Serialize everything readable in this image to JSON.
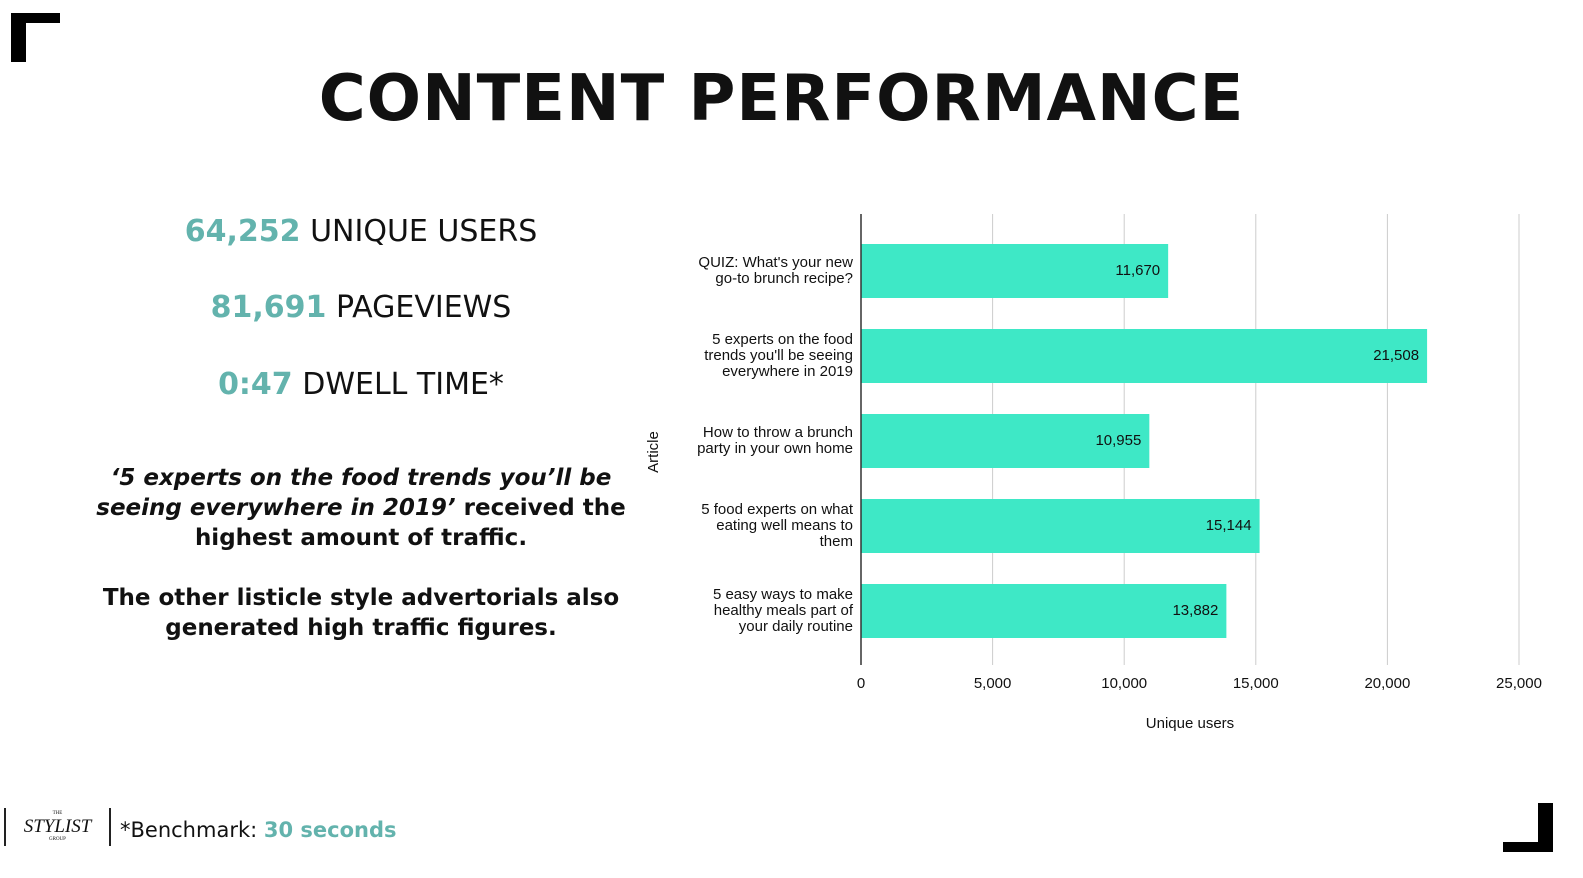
{
  "slide": {
    "title": "CONTENT PERFORMANCE",
    "stats": [
      {
        "value": "64,252",
        "label": "UNIQUE USERS"
      },
      {
        "value": "81,691",
        "label": "PAGEVIEWS"
      },
      {
        "value": "0:47",
        "label": "DWELL TIME*"
      }
    ],
    "paragraphs": [
      {
        "emphasis": "‘5 experts on the food trends you’ll be seeing everywhere in 2019’",
        "text": "received the highest amount of traffic."
      },
      {
        "emphasis": "",
        "text": "The other listicle style advertorials also generated high traffic figures."
      }
    ],
    "logo": {
      "top": "THE",
      "main": "STYLIST",
      "bottom": "GROUP"
    },
    "footnote": {
      "label": "*Benchmark:",
      "value": "30 seconds"
    }
  },
  "chart_data": {
    "type": "barh",
    "categories": [
      "QUIZ: What's your new go-to brunch recipe?",
      "5 experts on the food trends you'll be seeing everywhere in 2019",
      "How to throw a brunch party in your own home",
      "5 food experts on what eating well means to them",
      "5 easy ways to make healthy meals part of your daily routine"
    ],
    "values": [
      11670,
      21508,
      10955,
      15144,
      13882
    ],
    "value_labels": [
      "11,670",
      "21,508",
      "10,955",
      "15,144",
      "13,882"
    ],
    "color": "#3ee8c6",
    "xlim": [
      0,
      25000
    ],
    "xticks": [
      0,
      {
        "value": 5000,
        "label": "5,000"
      },
      {
        "value": 10000,
        "label": "10,000"
      },
      {
        "value": 15000,
        "label": "15,000"
      },
      {
        "value": 20000,
        "label": "20,000"
      },
      {
        "value": 25000,
        "label": "25,000"
      }
    ],
    "xlabel": "Unique users",
    "ylabel": "Article",
    "grid": true
  }
}
